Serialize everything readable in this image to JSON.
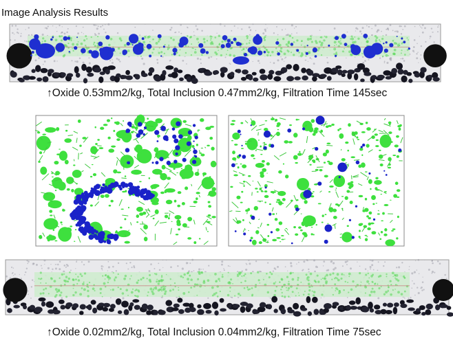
{
  "header": {
    "title": "Image Analysis Results"
  },
  "captions": [
    "↑Oxide 0.53mm2/kg, Total Inclusion 0.47mm2/kg, Filtration Time 145sec",
    "↑Oxide 0.02mm2/kg, Total Inclusion 0.04mm2/kg, Filtration Time 75sec"
  ]
}
